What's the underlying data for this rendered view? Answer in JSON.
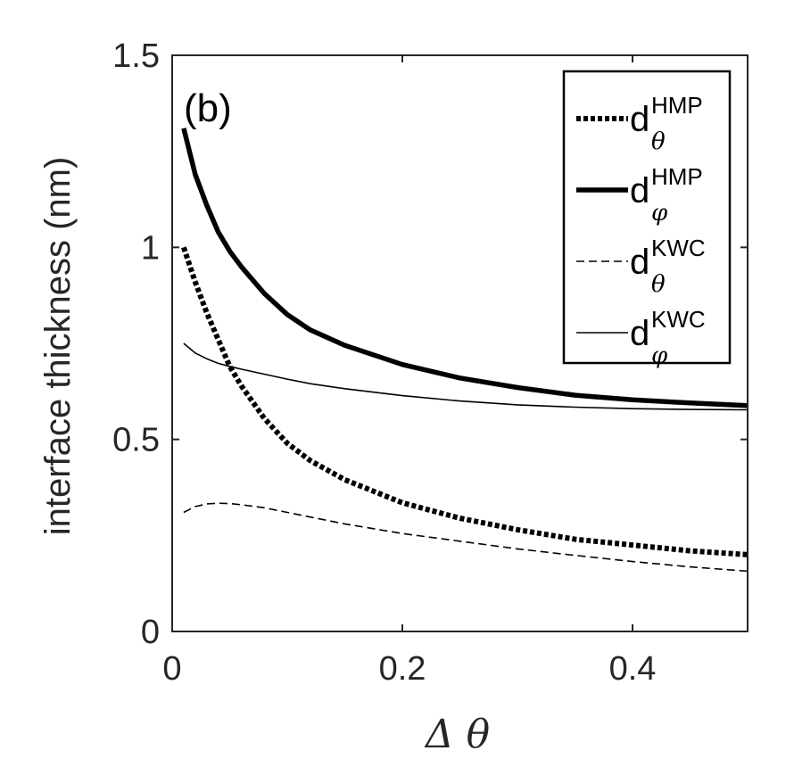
{
  "chart_data": {
    "type": "line",
    "panel_label": "(b)",
    "xlabel": "Δ θ",
    "ylabel": "interface thickness (nm)",
    "xlim": [
      0,
      0.5
    ],
    "ylim": [
      0,
      1.5
    ],
    "xticks": [
      0,
      0.2,
      0.4
    ],
    "xtick_labels": [
      "0",
      "0.2",
      "0.4"
    ],
    "yticks": [
      0,
      0.5,
      1,
      1.5
    ],
    "ytick_labels": [
      "0",
      "0.5",
      "1",
      "1.5"
    ],
    "legend_position": "top-right",
    "series": [
      {
        "name": "d_θ^HMP",
        "base": "d",
        "sup": "HMP",
        "sub": "θ",
        "style": "dotted-thick",
        "x": [
          0.01,
          0.02,
          0.03,
          0.04,
          0.05,
          0.06,
          0.08,
          0.1,
          0.12,
          0.15,
          0.2,
          0.25,
          0.3,
          0.35,
          0.4,
          0.45,
          0.5
        ],
        "y": [
          1.0,
          0.91,
          0.83,
          0.76,
          0.69,
          0.64,
          0.555,
          0.49,
          0.445,
          0.395,
          0.335,
          0.295,
          0.265,
          0.24,
          0.225,
          0.21,
          0.2
        ]
      },
      {
        "name": "d_φ^HMP",
        "base": "d",
        "sup": "HMP",
        "sub": "φ",
        "style": "solid-thick",
        "x": [
          0.01,
          0.02,
          0.03,
          0.04,
          0.05,
          0.06,
          0.08,
          0.1,
          0.12,
          0.15,
          0.2,
          0.25,
          0.3,
          0.35,
          0.4,
          0.45,
          0.5
        ],
        "y": [
          1.31,
          1.19,
          1.11,
          1.04,
          0.99,
          0.95,
          0.88,
          0.825,
          0.785,
          0.745,
          0.695,
          0.66,
          0.635,
          0.615,
          0.603,
          0.595,
          0.588
        ]
      },
      {
        "name": "d_θ^KWC",
        "base": "d",
        "sup": "KWC",
        "sub": "θ",
        "style": "dashed-thin",
        "x": [
          0.01,
          0.02,
          0.03,
          0.04,
          0.05,
          0.06,
          0.08,
          0.1,
          0.12,
          0.15,
          0.2,
          0.25,
          0.3,
          0.35,
          0.4,
          0.45,
          0.5
        ],
        "y": [
          0.31,
          0.325,
          0.332,
          0.334,
          0.333,
          0.33,
          0.322,
          0.31,
          0.298,
          0.28,
          0.255,
          0.235,
          0.215,
          0.198,
          0.182,
          0.168,
          0.157
        ]
      },
      {
        "name": "d_φ^KWC",
        "base": "d",
        "sup": "KWC",
        "sub": "φ",
        "style": "solid-thin",
        "x": [
          0.01,
          0.02,
          0.03,
          0.04,
          0.05,
          0.06,
          0.08,
          0.1,
          0.12,
          0.15,
          0.2,
          0.25,
          0.3,
          0.35,
          0.4,
          0.45,
          0.5
        ],
        "y": [
          0.75,
          0.725,
          0.71,
          0.698,
          0.69,
          0.683,
          0.67,
          0.657,
          0.645,
          0.632,
          0.614,
          0.6,
          0.59,
          0.584,
          0.58,
          0.578,
          0.577
        ]
      }
    ]
  }
}
